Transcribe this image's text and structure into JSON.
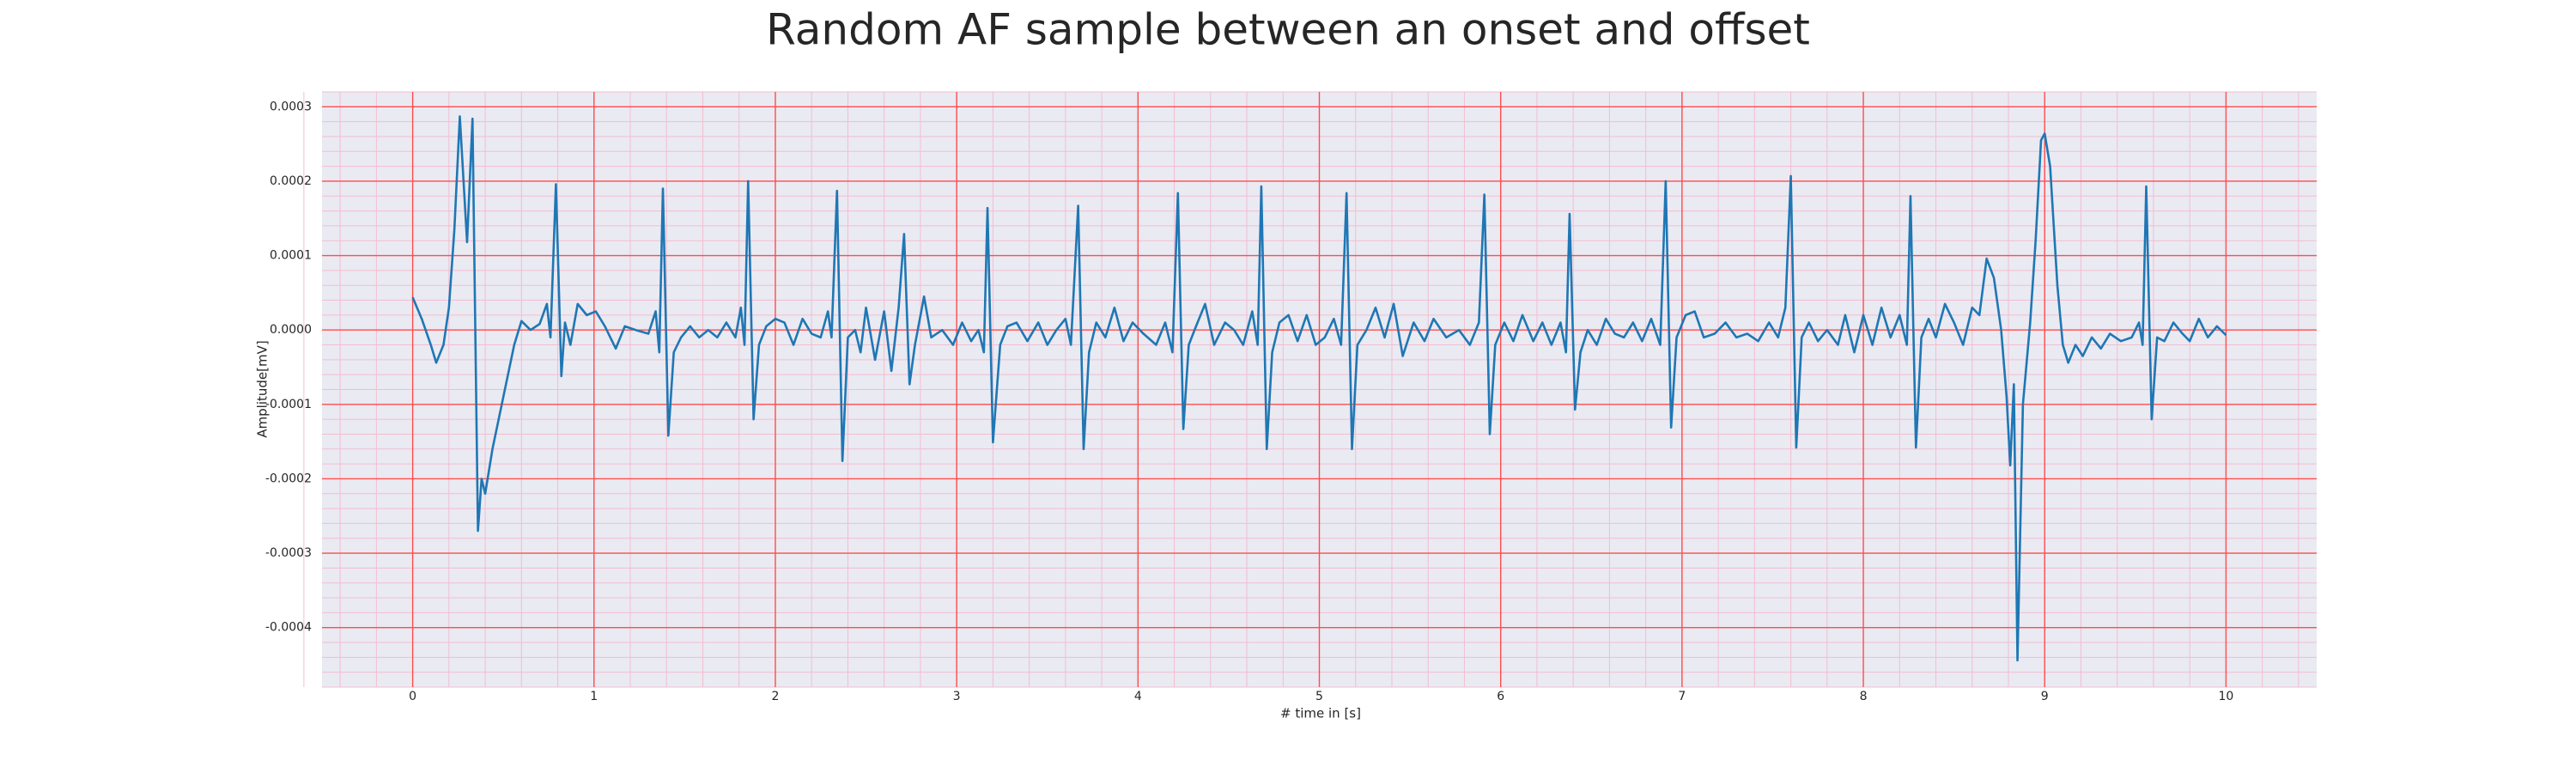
{
  "chart_data": {
    "type": "line",
    "title": "Random AF sample between an onset and offset",
    "xlabel": "# time in [s]",
    "ylabel": "Amplitude[mV]",
    "color": "#1f77b4",
    "grid": true,
    "grid_color": "#ff4d4d",
    "minor_grid": true,
    "minor_grid_color": "#f3bdd0",
    "background": "#eaeaf2",
    "xlim": [
      -0.5,
      10.5
    ],
    "ylim": [
      -0.00048,
      0.00032
    ],
    "xticks": [
      0,
      1,
      2,
      3,
      4,
      5,
      6,
      7,
      8,
      9,
      10
    ],
    "yticks": [
      -0.0004,
      -0.0003,
      -0.0002,
      -0.0001,
      {
        "value": 0,
        "label": "0.0000"
      },
      0.0001,
      0.0002,
      0.0003
    ],
    "x": [
      0.0,
      0.05,
      0.1,
      0.13,
      0.17,
      0.2,
      0.23,
      0.26,
      0.3,
      0.33,
      0.36,
      0.38,
      0.4,
      0.44,
      0.5,
      0.56,
      0.6,
      0.65,
      0.7,
      0.74,
      0.76,
      0.79,
      0.82,
      0.84,
      0.87,
      0.91,
      0.96,
      1.01,
      1.06,
      1.12,
      1.17,
      1.23,
      1.3,
      1.34,
      1.36,
      1.38,
      1.41,
      1.44,
      1.48,
      1.53,
      1.58,
      1.63,
      1.68,
      1.73,
      1.78,
      1.81,
      1.83,
      1.85,
      1.88,
      1.91,
      1.95,
      2.0,
      2.05,
      2.1,
      2.15,
      2.2,
      2.25,
      2.29,
      2.31,
      2.34,
      2.37,
      2.4,
      2.44,
      2.47,
      2.5,
      2.55,
      2.6,
      2.64,
      2.68,
      2.71,
      2.74,
      2.77,
      2.82,
      2.86,
      2.92,
      2.98,
      3.03,
      3.08,
      3.12,
      3.15,
      3.17,
      3.2,
      3.24,
      3.28,
      3.33,
      3.39,
      3.45,
      3.5,
      3.55,
      3.6,
      3.63,
      3.67,
      3.7,
      3.73,
      3.77,
      3.82,
      3.87,
      3.92,
      3.97,
      4.03,
      4.1,
      4.15,
      4.19,
      4.22,
      4.25,
      4.28,
      4.32,
      4.37,
      4.42,
      4.48,
      4.53,
      4.58,
      4.63,
      4.66,
      4.68,
      4.71,
      4.74,
      4.78,
      4.83,
      4.88,
      4.93,
      4.98,
      5.03,
      5.08,
      5.12,
      5.15,
      5.18,
      5.21,
      5.26,
      5.31,
      5.36,
      5.41,
      5.46,
      5.52,
      5.58,
      5.63,
      5.7,
      5.77,
      5.83,
      5.88,
      5.91,
      5.94,
      5.97,
      6.02,
      6.07,
      6.12,
      6.18,
      6.23,
      6.28,
      6.33,
      6.36,
      6.38,
      6.41,
      6.44,
      6.48,
      6.53,
      6.58,
      6.63,
      6.68,
      6.73,
      6.78,
      6.83,
      6.88,
      6.91,
      6.94,
      6.97,
      7.02,
      7.07,
      7.12,
      7.18,
      7.24,
      7.3,
      7.36,
      7.42,
      7.48,
      7.53,
      7.57,
      7.6,
      7.63,
      7.66,
      7.7,
      7.75,
      7.8,
      7.86,
      7.9,
      7.95,
      8.0,
      8.05,
      8.1,
      8.15,
      8.2,
      8.24,
      8.26,
      8.29,
      8.32,
      8.36,
      8.4,
      8.45,
      8.5,
      8.55,
      8.6,
      8.64,
      8.68,
      8.72,
      8.76,
      8.79,
      8.81,
      8.83,
      8.85,
      8.88,
      8.92,
      8.95,
      8.98,
      9.0,
      9.03,
      9.07,
      9.1,
      9.13,
      9.17,
      9.21,
      9.26,
      9.31,
      9.36,
      9.42,
      9.48,
      9.52,
      9.54,
      9.56,
      9.59,
      9.62,
      9.66,
      9.71,
      9.76,
      9.8,
      9.85,
      9.9,
      9.95,
      10.0
    ],
    "values": [
      4.4e-05,
      1.5e-05,
      -2e-05,
      -4.4e-05,
      -2e-05,
      3e-05,
      0.000135,
      0.000287,
      0.000118,
      0.000284,
      -0.00027,
      -0.0002,
      -0.00022,
      -0.00016,
      -9e-05,
      -2e-05,
      1.2e-05,
      0,
      8e-06,
      3.5e-05,
      -1e-05,
      0.000196,
      -6.2e-05,
      1e-05,
      -2e-05,
      3.5e-05,
      2e-05,
      2.5e-05,
      5e-06,
      -2.5e-05,
      5e-06,
      0,
      -5e-06,
      2.5e-05,
      -3e-05,
      0.00019,
      -0.000142,
      -3e-05,
      -1e-05,
      5e-06,
      -1e-05,
      0,
      -1e-05,
      1e-05,
      -1e-05,
      3e-05,
      -2e-05,
      0.0002,
      -0.00012,
      -2e-05,
      5e-06,
      1.5e-05,
      1e-05,
      -2e-05,
      1.5e-05,
      -5e-06,
      -1e-05,
      2.5e-05,
      -1e-05,
      0.000187,
      -0.000176,
      -1e-05,
      0,
      -3e-05,
      3e-05,
      -4e-05,
      2.5e-05,
      -5.5e-05,
      3e-05,
      0.000129,
      -7.3e-05,
      -2e-05,
      4.5e-05,
      -1e-05,
      0,
      -2e-05,
      1e-05,
      -1.5e-05,
      0,
      -3e-05,
      0.000164,
      -0.000151,
      -2e-05,
      5e-06,
      1e-05,
      -1.5e-05,
      1e-05,
      -2e-05,
      0,
      1.5e-05,
      -2e-05,
      0.000167,
      -0.00016,
      -3e-05,
      1e-05,
      -1e-05,
      3e-05,
      -1.5e-05,
      1e-05,
      -5e-06,
      -2e-05,
      1e-05,
      -3e-05,
      0.000184,
      -0.000133,
      -2e-05,
      5e-06,
      3.5e-05,
      -2e-05,
      1e-05,
      0,
      -2e-05,
      2.5e-05,
      -2e-05,
      0.000193,
      -0.00016,
      -3e-05,
      1e-05,
      2e-05,
      -1.5e-05,
      2e-05,
      -2e-05,
      -1e-05,
      1.5e-05,
      -2e-05,
      0.000184,
      -0.00016,
      -2e-05,
      0,
      3e-05,
      -1e-05,
      3.5e-05,
      -3.5e-05,
      1e-05,
      -1.5e-05,
      1.5e-05,
      -1e-05,
      0,
      -2e-05,
      1e-05,
      0.000182,
      -0.00014,
      -2e-05,
      1e-05,
      -1.5e-05,
      2e-05,
      -1.5e-05,
      1e-05,
      -2e-05,
      1e-05,
      -3e-05,
      0.000156,
      -0.000107,
      -3e-05,
      0,
      -2e-05,
      1.5e-05,
      -5e-06,
      -1e-05,
      1e-05,
      -1.5e-05,
      1.5e-05,
      -2e-05,
      0.0002,
      -0.000131,
      -1e-05,
      2e-05,
      2.5e-05,
      -1e-05,
      -5e-06,
      1e-05,
      -1e-05,
      -5e-06,
      -1.5e-05,
      1e-05,
      -1e-05,
      3e-05,
      0.000207,
      -0.000158,
      -1e-05,
      1e-05,
      -1.5e-05,
      0,
      -2e-05,
      2e-05,
      -3e-05,
      2e-05,
      -2e-05,
      3e-05,
      -1e-05,
      2e-05,
      -2e-05,
      0.00018,
      -0.000158,
      -1e-05,
      1.5e-05,
      -1e-05,
      3.5e-05,
      1e-05,
      -2e-05,
      3e-05,
      2e-05,
      9.6e-05,
      7e-05,
      0,
      -9e-05,
      -0.000182,
      -7.3e-05,
      -0.000444,
      -0.0001,
      1e-05,
      0.00012,
      0.000255,
      0.000264,
      0.00022,
      6e-05,
      -2e-05,
      -4.4e-05,
      -2e-05,
      -3.5e-05,
      -1e-05,
      -2.5e-05,
      -5e-06,
      -1.5e-05,
      -1e-05,
      1e-05,
      -2e-05,
      0.000193,
      -0.00012,
      -1e-05,
      -1.5e-05,
      1e-05,
      -5e-06,
      -1.5e-05,
      1.5e-05,
      -1e-05,
      5e-06,
      -7e-06
    ]
  }
}
